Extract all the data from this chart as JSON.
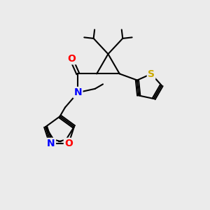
{
  "bg_color": "#ebebeb",
  "atom_colors": {
    "C": "#000000",
    "N": "#0000ff",
    "O": "#ff0000",
    "S": "#ccaa00"
  },
  "bond_color": "#000000",
  "bond_width": 1.5
}
